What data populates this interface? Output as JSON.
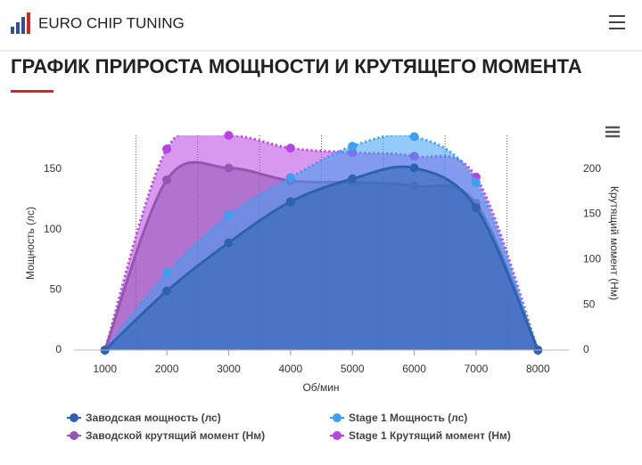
{
  "header": {
    "brand": "EURO CHIP TUNING"
  },
  "title": "ГРАФИК ПРИРОСТА МОЩНОСТИ И КРУТЯЩЕГО МОМЕНТА",
  "chart_data": {
    "type": "area",
    "x_label": "Об/мин",
    "y_label": "Мощность (лс)",
    "y2_label": "Крутящий момент (Нм)",
    "x": [
      1000,
      2000,
      3000,
      4000,
      5000,
      6000,
      7000,
      8000
    ],
    "xlim": [
      500,
      8500
    ],
    "xticks": [
      1000,
      2000,
      3000,
      4000,
      5000,
      6000,
      7000,
      8000
    ],
    "ylim": [
      0,
      178
    ],
    "yticks": [
      0,
      50,
      100,
      150
    ],
    "y2lim": [
      0,
      237
    ],
    "y2ticks": [
      0,
      50,
      100,
      150,
      200
    ],
    "series": [
      {
        "name": "Заводская мощность (лс)",
        "color": "#2d62b0",
        "dashed": false,
        "values": [
          0,
          49,
          89,
          123,
          142,
          151,
          118,
          0
        ]
      },
      {
        "name": "Stage 1 Мощность (лс)",
        "color": "#3d9ff0",
        "dashed": true,
        "values": [
          0,
          64,
          112,
          143,
          169,
          177,
          139,
          0
        ]
      },
      {
        "name": "Заводской крутящий момент (Нм)",
        "color": "#9256b3",
        "dashed": false,
        "axis": "y2",
        "values": [
          0,
          188,
          201,
          187,
          185,
          181,
          162,
          0
        ]
      },
      {
        "name": "Stage 1 Крутящий момент (Нм)",
        "color": "#b844e0",
        "dashed": true,
        "axis": "y2",
        "values": [
          0,
          222,
          237,
          223,
          218,
          214,
          191,
          0
        ]
      }
    ]
  }
}
